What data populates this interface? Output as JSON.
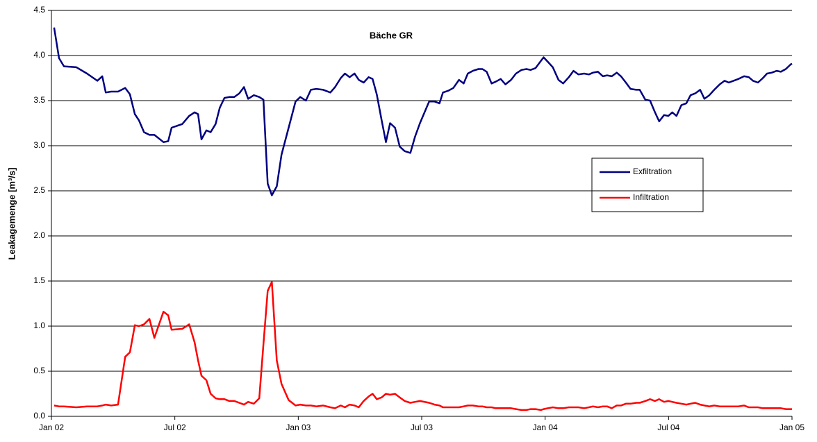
{
  "chart_data": {
    "type": "line",
    "title": "Bäche GR",
    "y_label": "Leakagemenge [m³/s]",
    "x": [
      2002.011,
      2002.031,
      2002.051,
      2002.101,
      2002.144,
      2002.186,
      2002.206,
      2002.22,
      2002.242,
      2002.27,
      2002.299,
      2002.318,
      2002.338,
      2002.355,
      2002.375,
      2002.397,
      2002.417,
      2002.454,
      2002.473,
      2002.487,
      2002.53,
      2002.558,
      2002.58,
      2002.594,
      2002.608,
      2002.628,
      2002.645,
      2002.665,
      2002.682,
      2002.701,
      2002.721,
      2002.741,
      2002.761,
      2002.78,
      2002.797,
      2002.82,
      2002.842,
      2002.859,
      2002.876,
      2002.893,
      2002.913,
      2002.932,
      2002.961,
      2002.989,
      2003.008,
      2003.031,
      2003.051,
      2003.073,
      2003.101,
      2003.13,
      2003.149,
      2003.172,
      2003.189,
      2003.208,
      2003.228,
      2003.245,
      2003.265,
      2003.285,
      2003.301,
      2003.318,
      2003.338,
      2003.355,
      2003.372,
      2003.392,
      2003.411,
      2003.431,
      2003.454,
      2003.473,
      2003.493,
      2003.53,
      2003.552,
      2003.572,
      2003.586,
      2003.608,
      2003.628,
      2003.651,
      2003.67,
      2003.687,
      2003.707,
      2003.73,
      2003.746,
      2003.763,
      2003.783,
      2003.8,
      2003.82,
      2003.839,
      2003.862,
      2003.882,
      2003.904,
      2003.924,
      2003.941,
      2003.961,
      2003.983,
      2003.994,
      2004.011,
      2004.031,
      2004.054,
      2004.073,
      2004.096,
      2004.115,
      2004.135,
      2004.158,
      2004.177,
      2004.194,
      2004.214,
      2004.234,
      2004.251,
      2004.27,
      2004.29,
      2004.307,
      2004.327,
      2004.346,
      2004.369,
      2004.383,
      2004.406,
      2004.425,
      2004.445,
      2004.462,
      2004.482,
      2004.499,
      2004.515,
      2004.532,
      2004.552,
      2004.572,
      2004.589,
      2004.608,
      2004.628,
      2004.645,
      2004.665,
      2004.685,
      2004.707,
      2004.727,
      2004.744,
      2004.763,
      2004.783,
      2004.806,
      2004.825,
      2004.842,
      2004.862,
      2004.882,
      2004.899,
      2004.918,
      2004.938,
      2004.955,
      2004.975,
      2004.994,
      2005.0
    ],
    "series": [
      {
        "name": "Exfiltration",
        "color": "#000080",
        "values": [
          4.31,
          3.97,
          3.88,
          3.87,
          3.8,
          3.72,
          3.77,
          3.59,
          3.6,
          3.6,
          3.64,
          3.57,
          3.35,
          3.28,
          3.15,
          3.12,
          3.12,
          3.04,
          3.05,
          3.2,
          3.24,
          3.33,
          3.37,
          3.35,
          3.07,
          3.17,
          3.15,
          3.24,
          3.42,
          3.53,
          3.54,
          3.54,
          3.58,
          3.65,
          3.52,
          3.56,
          3.54,
          3.51,
          2.58,
          2.45,
          2.55,
          2.9,
          3.2,
          3.49,
          3.54,
          3.5,
          3.62,
          3.63,
          3.62,
          3.59,
          3.65,
          3.75,
          3.8,
          3.76,
          3.8,
          3.73,
          3.7,
          3.76,
          3.74,
          3.57,
          3.28,
          3.04,
          3.25,
          3.2,
          2.99,
          2.94,
          2.92,
          3.1,
          3.25,
          3.49,
          3.49,
          3.47,
          3.59,
          3.61,
          3.64,
          3.73,
          3.69,
          3.8,
          3.83,
          3.85,
          3.85,
          3.82,
          3.69,
          3.71,
          3.74,
          3.68,
          3.73,
          3.8,
          3.84,
          3.85,
          3.84,
          3.86,
          3.94,
          3.98,
          3.93,
          3.87,
          3.73,
          3.69,
          3.76,
          3.83,
          3.79,
          3.8,
          3.79,
          3.81,
          3.82,
          3.77,
          3.78,
          3.77,
          3.81,
          3.77,
          3.7,
          3.63,
          3.62,
          3.62,
          3.51,
          3.5,
          3.37,
          3.27,
          3.34,
          3.33,
          3.37,
          3.33,
          3.45,
          3.47,
          3.56,
          3.58,
          3.62,
          3.52,
          3.56,
          3.62,
          3.68,
          3.72,
          3.7,
          3.72,
          3.74,
          3.77,
          3.76,
          3.72,
          3.7,
          3.75,
          3.8,
          3.81,
          3.83,
          3.82,
          3.85,
          3.9,
          3.91
        ]
      },
      {
        "name": "Infiltration",
        "color": "#ff0000",
        "values": [
          0.12,
          0.11,
          0.11,
          0.1,
          0.11,
          0.11,
          0.12,
          0.13,
          0.12,
          0.13,
          0.66,
          0.71,
          1.01,
          1.0,
          1.02,
          1.08,
          0.87,
          1.16,
          1.12,
          0.96,
          0.97,
          1.02,
          0.82,
          0.62,
          0.45,
          0.4,
          0.25,
          0.2,
          0.19,
          0.19,
          0.17,
          0.17,
          0.15,
          0.13,
          0.16,
          0.14,
          0.2,
          0.8,
          1.39,
          1.49,
          0.62,
          0.36,
          0.18,
          0.12,
          0.13,
          0.12,
          0.12,
          0.11,
          0.12,
          0.1,
          0.09,
          0.12,
          0.1,
          0.13,
          0.12,
          0.1,
          0.17,
          0.22,
          0.25,
          0.19,
          0.21,
          0.25,
          0.24,
          0.25,
          0.21,
          0.17,
          0.15,
          0.16,
          0.17,
          0.15,
          0.13,
          0.12,
          0.1,
          0.1,
          0.1,
          0.1,
          0.11,
          0.12,
          0.12,
          0.11,
          0.11,
          0.1,
          0.1,
          0.09,
          0.09,
          0.09,
          0.09,
          0.08,
          0.07,
          0.07,
          0.08,
          0.08,
          0.07,
          0.08,
          0.09,
          0.1,
          0.09,
          0.09,
          0.1,
          0.1,
          0.1,
          0.09,
          0.1,
          0.11,
          0.1,
          0.11,
          0.11,
          0.09,
          0.12,
          0.12,
          0.14,
          0.14,
          0.15,
          0.15,
          0.17,
          0.19,
          0.17,
          0.19,
          0.16,
          0.17,
          0.16,
          0.15,
          0.14,
          0.13,
          0.14,
          0.15,
          0.13,
          0.12,
          0.11,
          0.12,
          0.11,
          0.11,
          0.11,
          0.11,
          0.11,
          0.12,
          0.1,
          0.1,
          0.1,
          0.09,
          0.09,
          0.09,
          0.09,
          0.09,
          0.08,
          0.08,
          0.08
        ]
      }
    ],
    "xlim": [
      2002,
      2005
    ],
    "xticks": [
      {
        "value": 2002,
        "label": "Jan 02"
      },
      {
        "value": 2002.5,
        "label": "Jul 02"
      },
      {
        "value": 2003,
        "label": "Jan 03"
      },
      {
        "value": 2003.5,
        "label": "Jul 03"
      },
      {
        "value": 2004,
        "label": "Jan 04"
      },
      {
        "value": 2004.5,
        "label": "Jul 04"
      },
      {
        "value": 2005,
        "label": "Jan 05"
      }
    ],
    "ylim": [
      0,
      4.5
    ],
    "yticks": [
      {
        "value": 0,
        "label": "0.0"
      },
      0.5,
      {
        "value": 1,
        "label": "1.0"
      },
      1.5,
      {
        "value": 2,
        "label": "2.0"
      },
      2.5,
      {
        "value": 3,
        "label": "3.0"
      },
      3.5,
      {
        "value": 4,
        "label": "4.0"
      },
      4.5
    ],
    "grid": true
  }
}
